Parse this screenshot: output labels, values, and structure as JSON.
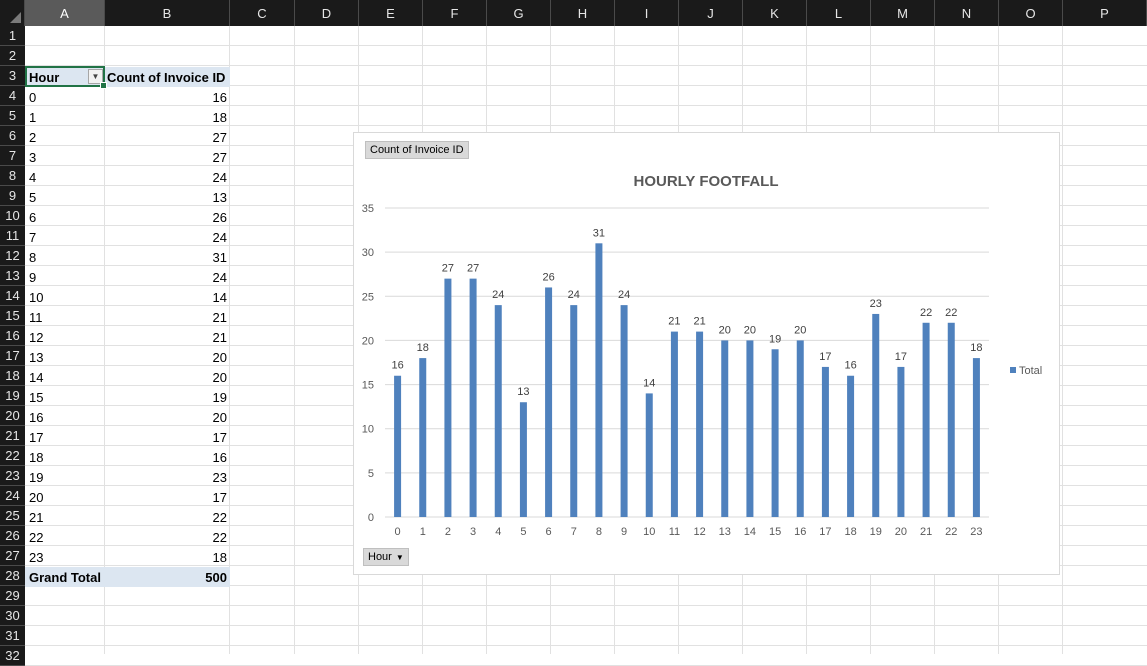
{
  "columns": [
    "A",
    "B",
    "C",
    "D",
    "E",
    "F",
    "G",
    "H",
    "I",
    "J",
    "K",
    "L",
    "M",
    "N",
    "O",
    "P"
  ],
  "selected_column": "A",
  "rows": [
    "1",
    "2",
    "3",
    "4",
    "5",
    "6",
    "7",
    "8",
    "9",
    "10",
    "11",
    "12",
    "13",
    "14",
    "15",
    "16",
    "17",
    "18",
    "19",
    "20",
    "21",
    "22",
    "23",
    "24",
    "25",
    "26",
    "27",
    "28",
    "29",
    "30",
    "31",
    "32"
  ],
  "pivot": {
    "header_hour": "Hour",
    "header_count": "Count of Invoice ID",
    "rows": [
      {
        "hour": "0",
        "count": "16"
      },
      {
        "hour": "1",
        "count": "18"
      },
      {
        "hour": "2",
        "count": "27"
      },
      {
        "hour": "3",
        "count": "27"
      },
      {
        "hour": "4",
        "count": "24"
      },
      {
        "hour": "5",
        "count": "13"
      },
      {
        "hour": "6",
        "count": "26"
      },
      {
        "hour": "7",
        "count": "24"
      },
      {
        "hour": "8",
        "count": "31"
      },
      {
        "hour": "9",
        "count": "24"
      },
      {
        "hour": "10",
        "count": "14"
      },
      {
        "hour": "11",
        "count": "21"
      },
      {
        "hour": "12",
        "count": "21"
      },
      {
        "hour": "13",
        "count": "20"
      },
      {
        "hour": "14",
        "count": "20"
      },
      {
        "hour": "15",
        "count": "19"
      },
      {
        "hour": "16",
        "count": "20"
      },
      {
        "hour": "17",
        "count": "17"
      },
      {
        "hour": "18",
        "count": "16"
      },
      {
        "hour": "19",
        "count": "23"
      },
      {
        "hour": "20",
        "count": "17"
      },
      {
        "hour": "21",
        "count": "22"
      },
      {
        "hour": "22",
        "count": "22"
      },
      {
        "hour": "23",
        "count": "18"
      }
    ],
    "total_label": "Grand Total",
    "total_value": "500"
  },
  "chart_field_value": "Count of Invoice ID",
  "chart_field_axis": "Hour",
  "colors": {
    "bar": "#4f81bd",
    "header_fill": "#dce6f1",
    "selection": "#217346"
  },
  "chart_data": {
    "type": "bar",
    "title": "HOURLY FOOTFALL",
    "categories": [
      "0",
      "1",
      "2",
      "3",
      "4",
      "5",
      "6",
      "7",
      "8",
      "9",
      "10",
      "11",
      "12",
      "13",
      "14",
      "15",
      "16",
      "17",
      "18",
      "19",
      "20",
      "21",
      "22",
      "23"
    ],
    "series": [
      {
        "name": "Total",
        "values": [
          16,
          18,
          27,
          27,
          24,
          13,
          26,
          24,
          31,
          24,
          14,
          21,
          21,
          20,
          20,
          19,
          20,
          17,
          16,
          23,
          17,
          22,
          22,
          18
        ]
      }
    ],
    "ylim": [
      0,
      35
    ],
    "yticks": [
      0,
      5,
      10,
      15,
      20,
      25,
      30,
      35
    ],
    "grid": true,
    "legend": "right",
    "data_labels": true
  }
}
